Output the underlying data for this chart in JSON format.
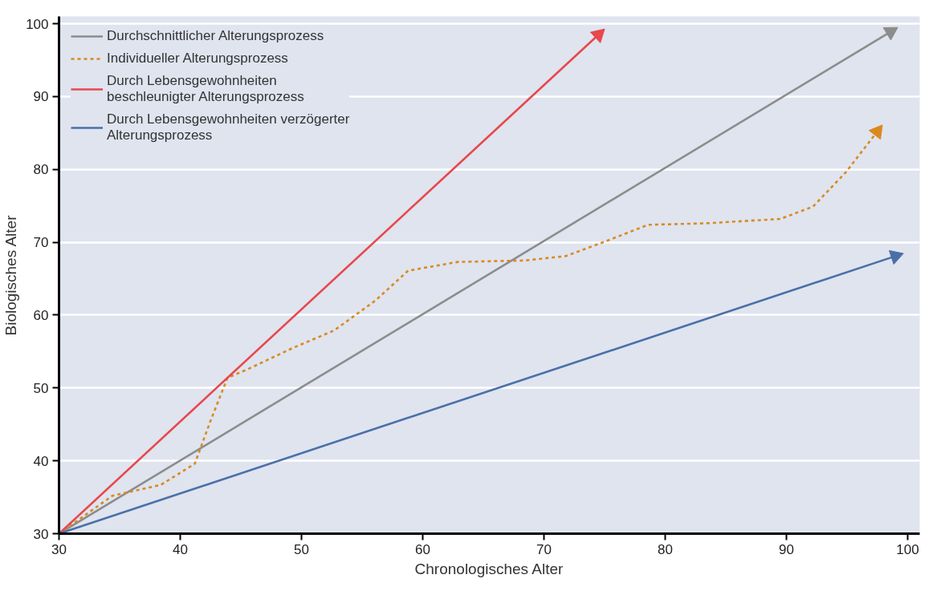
{
  "chart_data": {
    "type": "line",
    "xlabel": "Chronologisches Alter",
    "ylabel": "Biologisches Alter",
    "xlim": [
      30,
      101
    ],
    "ylim": [
      30,
      101
    ],
    "xticks": [
      30,
      40,
      50,
      60,
      70,
      80,
      90,
      100
    ],
    "yticks": [
      30,
      40,
      50,
      60,
      70,
      80,
      90,
      100
    ],
    "grid": "y",
    "legend": "top left",
    "series": [
      {
        "name": "Durchschnittlicher Alterungsprozess",
        "color": "#8c8c8c",
        "line_style": "solid",
        "x": [
          30,
          98.6
        ],
        "values": [
          30,
          98.9
        ]
      },
      {
        "name": "Individueller Alterungsprozess",
        "color": "#d98a1f",
        "line_style": "dashed",
        "x": [
          30,
          34.4,
          38.4,
          41.2,
          42.5,
          43.9,
          45.6,
          49.3,
          52.7,
          56.1,
          58.8,
          62.9,
          68.4,
          71.8,
          75.2,
          78.6,
          83.3,
          89.5,
          92.2,
          94.9,
          97.5
        ],
        "values": [
          30,
          35.2,
          36.7,
          39.6,
          45.5,
          51.4,
          52.6,
          55.5,
          57.9,
          62,
          66.1,
          67.3,
          67.5,
          68.1,
          70.2,
          72.4,
          72.6,
          73.2,
          74.9,
          79.6,
          85.2
        ]
      },
      {
        "name": "Durch Lebensgewohnheiten beschleunigter Alterungsprozess",
        "color": "#e8474c",
        "line_style": "solid",
        "x": [
          30,
          74.5
        ],
        "values": [
          30,
          98.5
        ]
      },
      {
        "name": "Durch Lebensgewohnheiten verzögerter Alterungsprozess",
        "color": "#4a70a8",
        "line_style": "solid",
        "x": [
          30,
          99
        ],
        "values": [
          30,
          68.1
        ]
      }
    ]
  }
}
